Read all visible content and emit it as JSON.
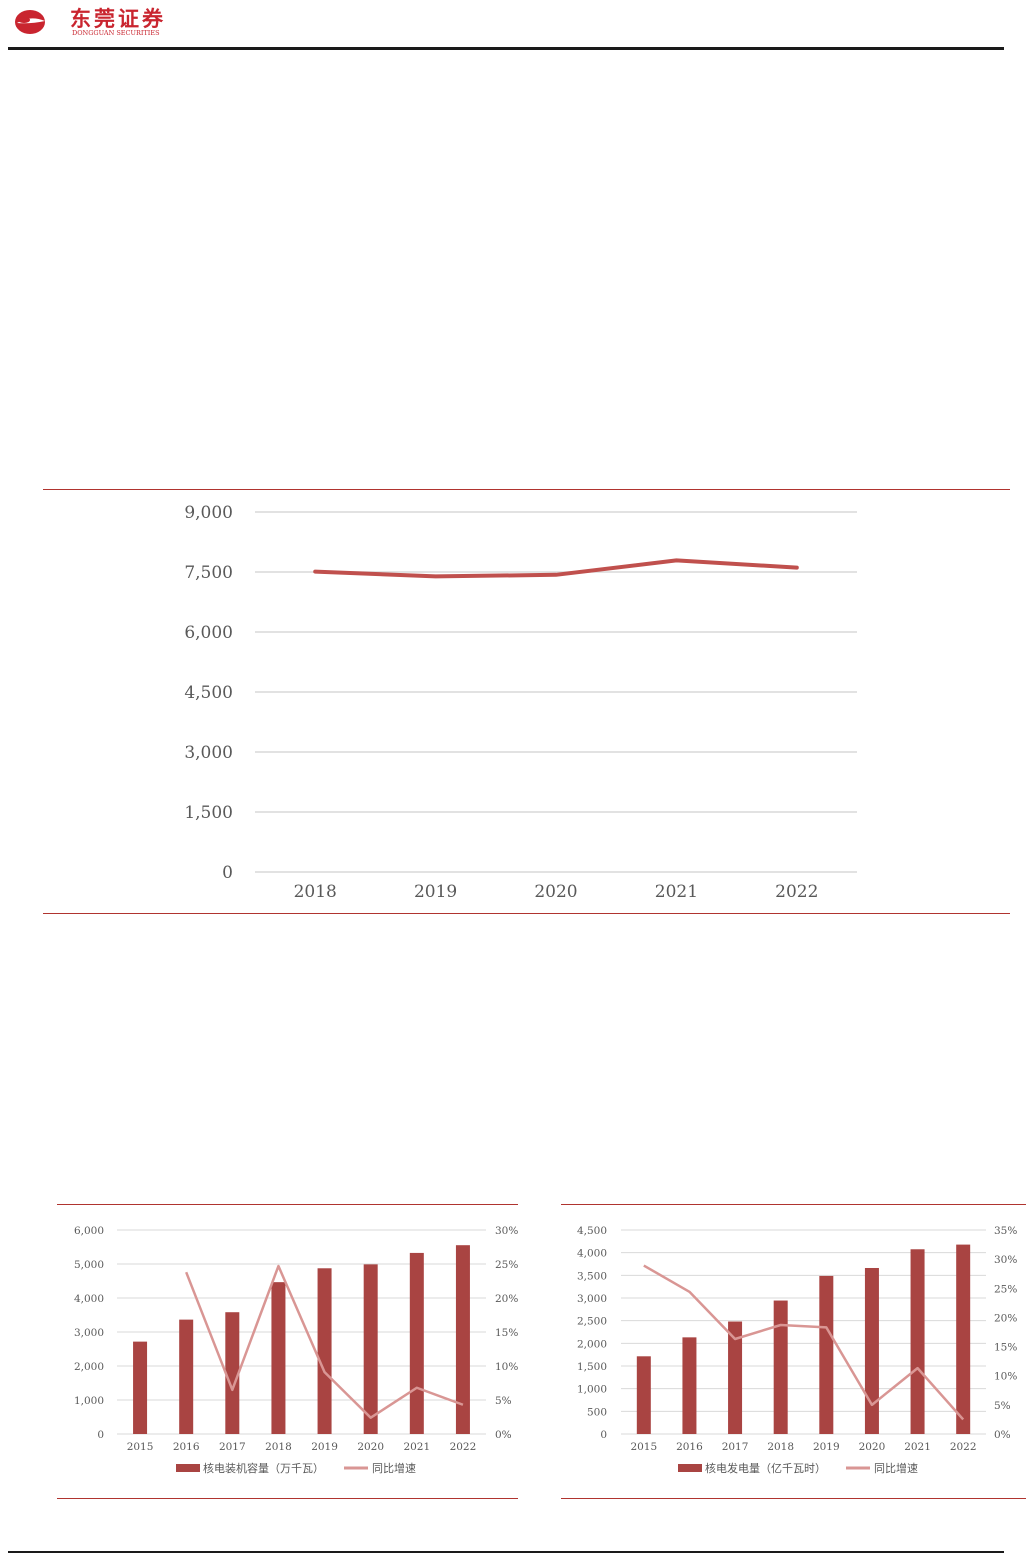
{
  "header": {
    "brand_cn": "东莞证券",
    "brand_en": "DONGGUAN SECURITIES"
  },
  "colors": {
    "brand_red": "#c9252f",
    "bar": "#a94442",
    "line_main": "#c0504d",
    "line_light": "#d99694",
    "grid": "#d9d9d9",
    "rule_red": "#b0342f"
  },
  "chart_data": [
    {
      "type": "line",
      "categories": [
        "2018",
        "2019",
        "2020",
        "2021",
        "2022"
      ],
      "series": [
        {
          "values": [
            7510,
            7390,
            7430,
            7790,
            7610
          ]
        }
      ],
      "ylim": [
        0,
        9000
      ],
      "yticks": [
        "0",
        "1,500",
        "3,000",
        "4,500",
        "6,000",
        "7,500",
        "9,000"
      ],
      "grid": true,
      "legend": "none"
    },
    {
      "type": "bar",
      "categories": [
        "2015",
        "2016",
        "2017",
        "2018",
        "2019",
        "2020",
        "2021",
        "2022"
      ],
      "series": [
        {
          "name": "核电装机容量（万千瓦）",
          "type": "bar",
          "axis": "left",
          "values": [
            2717,
            3364,
            3582,
            4466,
            4874,
            4989,
            5326,
            5553
          ]
        },
        {
          "name": "同比增速",
          "type": "line",
          "axis": "right",
          "values": [
            null,
            0.238,
            0.065,
            0.247,
            0.091,
            0.024,
            0.068,
            0.043
          ]
        }
      ],
      "ylim_left": [
        0,
        6000
      ],
      "ylim_right": [
        0,
        0.3
      ],
      "yticks_left": [
        "0",
        "1,000",
        "2,000",
        "3,000",
        "4,000",
        "5,000",
        "6,000"
      ],
      "yticks_right": [
        "0%",
        "5%",
        "10%",
        "15%",
        "20%",
        "25%",
        "30%"
      ],
      "grid": true,
      "legend": "bottom"
    },
    {
      "type": "bar",
      "categories": [
        "2015",
        "2016",
        "2017",
        "2018",
        "2019",
        "2020",
        "2021",
        "2022"
      ],
      "series": [
        {
          "name": "核电发电量（亿千瓦时）",
          "type": "bar",
          "axis": "left",
          "values": [
            1714,
            2132,
            2481,
            2944,
            3487,
            3662,
            4075,
            4178
          ]
        },
        {
          "name": "同比增速",
          "type": "line",
          "axis": "right",
          "values": [
            0.289,
            0.244,
            0.163,
            0.187,
            0.183,
            0.05,
            0.113,
            0.025
          ]
        }
      ],
      "ylim_left": [
        0,
        4500
      ],
      "ylim_right": [
        0,
        0.35
      ],
      "yticks_left": [
        "0",
        "500",
        "1,000",
        "1,500",
        "2,000",
        "2,500",
        "3,000",
        "3,500",
        "4,000",
        "4,500"
      ],
      "yticks_right": [
        "0%",
        "5%",
        "10%",
        "15%",
        "20%",
        "25%",
        "30%",
        "35%"
      ],
      "grid": true,
      "legend": "bottom"
    }
  ]
}
